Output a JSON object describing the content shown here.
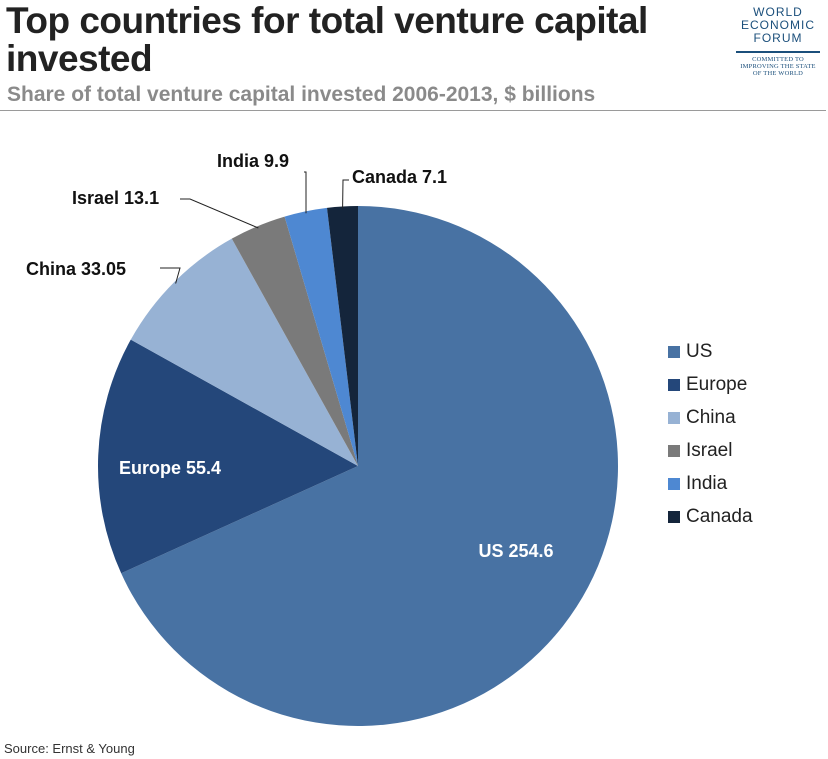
{
  "header": {
    "title": "Top countries for total venture capital invested",
    "subtitle": "Share of total venture capital invested 2006-2013, $ billions"
  },
  "logo": {
    "lines": [
      "WORLD",
      "ECONOMIC",
      "FORUM"
    ],
    "tagline": [
      "COMMITTED TO",
      "IMPROVING THE STATE",
      "OF THE WORLD"
    ]
  },
  "source": "Source: Ernst & Young",
  "chart_data": {
    "type": "pie",
    "title": "Top countries for total venture capital invested",
    "unit": "$ billions",
    "legend_position": "right",
    "start_angle_deg": 0,
    "direction": "clockwise",
    "slices": [
      {
        "label": "US",
        "value": 254.6,
        "value_text": "254.6",
        "color": "#4872a3",
        "label_inside": true,
        "label_color": "#ffffff"
      },
      {
        "label": "Europe",
        "value": 55.4,
        "value_text": "55.4",
        "color": "#24477a",
        "label_inside": true,
        "label_color": "#ffffff"
      },
      {
        "label": "China",
        "value": 33.05,
        "value_text": "33.05",
        "color": "#97b2d4",
        "label_inside": false,
        "label_color": "#111111"
      },
      {
        "label": "Israel",
        "value": 13.1,
        "value_text": "13.1",
        "color": "#7a7a7a",
        "label_inside": false,
        "label_color": "#111111"
      },
      {
        "label": "India",
        "value": 9.9,
        "value_text": "9.9",
        "color": "#4e88d2",
        "label_inside": false,
        "label_color": "#111111"
      },
      {
        "label": "Canada",
        "value": 7.1,
        "value_text": "7.1",
        "color": "#14253b",
        "label_inside": false,
        "label_color": "#111111"
      }
    ]
  }
}
